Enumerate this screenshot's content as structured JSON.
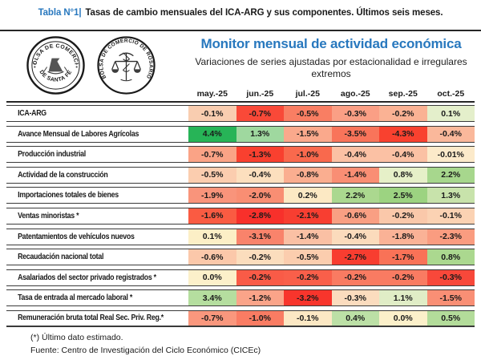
{
  "caption": {
    "label": "Tabla N°1|",
    "text": "Tasas de cambio mensuales del ICA-ARG y sus componentes. Últimos seis meses."
  },
  "branding": {
    "logo_santafe": {
      "arc_top": "BOLSA DE COMERCIO",
      "arc_bottom": "DE SANTA FE"
    },
    "logo_rosario": {
      "arc": "BOLSA DE COMERCIO DE ROSARIO"
    }
  },
  "header": {
    "title": "Monitor mensual de actividad económica",
    "subtitle": "Variaciones de series ajustadas por estacionalidad e irregulares extremos"
  },
  "table": {
    "columns": [
      "may.-25",
      "jun.-25",
      "jul.-25",
      "ago.-25",
      "sep.-25",
      "oct.-25"
    ],
    "rows": [
      {
        "label": "ICA-ARG",
        "values": [
          "-0.1%",
          "-0.7%",
          "-0.5%",
          "-0.3%",
          "-0.2%",
          "0.1%"
        ],
        "colors": [
          "#F9CDB0",
          "#F94938",
          "#F97E63",
          "#FA9F85",
          "#FAB294",
          "#E4EFCB"
        ]
      },
      {
        "label": "Avance Mensual de Labores Agrícolas",
        "values": [
          "4.4%",
          "1.3%",
          "-1.5%",
          "-3.5%",
          "-4.3%",
          "-0.4%"
        ],
        "colors": [
          "#27B457",
          "#9FD89F",
          "#FAA98C",
          "#F9745A",
          "#F9412F",
          "#FAB89B"
        ]
      },
      {
        "label": "Producción industrial",
        "values": [
          "-0.7%",
          "-1.3%",
          "-1.0%",
          "-0.4%",
          "-0.4%",
          "-0.01%"
        ],
        "colors": [
          "#FAA386",
          "#F9402F",
          "#F9694D",
          "#FBC1A4",
          "#FBC1A4",
          "#FCEACA"
        ]
      },
      {
        "label": "Actividad de la construcción",
        "values": [
          "-0.5%",
          "-0.4%",
          "-0.8%",
          "-1.4%",
          "0.8%",
          "2.2%"
        ],
        "colors": [
          "#FBCDAF",
          "#FCDFBE",
          "#FAAE90",
          "#F98E74",
          "#E6F0C8",
          "#A7D78D"
        ]
      },
      {
        "label": "Importaciones totales de bienes",
        "values": [
          "-1.9%",
          "-2.0%",
          "0.2%",
          "2.2%",
          "2.5%",
          "1.3%"
        ],
        "colors": [
          "#F9947B",
          "#F98E73",
          "#FCE9C4",
          "#ABD88F",
          "#9CD381",
          "#C8E3AB"
        ]
      },
      {
        "label": "Ventas minoristas *",
        "values": [
          "-1.6%",
          "-2.8%",
          "-2.1%",
          "-0.6%",
          "-0.2%",
          "-0.1%"
        ],
        "colors": [
          "#FA5B42",
          "#F8302B",
          "#F83E31",
          "#F99F83",
          "#FAC8AA",
          "#FBD2B3"
        ]
      },
      {
        "label": "Patentamientos de vehículos nuevos",
        "values": [
          "0.1%",
          "-3.1%",
          "-1.4%",
          "-0.4%",
          "-1.8%",
          "-2.3%"
        ],
        "colors": [
          "#FCEFC6",
          "#F9836B",
          "#FAC0A4",
          "#FBDBBC",
          "#FAB296",
          "#FA9C80"
        ]
      },
      {
        "label": "Recaudación nacional total",
        "values": [
          "-0.6%",
          "-0.2%",
          "-0.5%",
          "-2.7%",
          "-1.7%",
          "0.8%"
        ],
        "colors": [
          "#FBC8AA",
          "#FBDDBD",
          "#FBCDAE",
          "#F83D30",
          "#F97257",
          "#ABD88F"
        ]
      },
      {
        "label": "Asalariados del sector privado registrados *",
        "values": [
          "0.0%",
          "-0.2%",
          "-0.2%",
          "-0.2%",
          "-0.2%",
          "-0.3%"
        ],
        "colors": [
          "#FCF0CA",
          "#F95B47",
          "#F95F4A",
          "#F97B62",
          "#F97B62",
          "#F8483A"
        ]
      },
      {
        "label": "Tasa de entrada al mercado laboral *",
        "values": [
          "3.4%",
          "-1.2%",
          "-3.2%",
          "-0.3%",
          "1.1%",
          "-1.5%"
        ],
        "colors": [
          "#B5DE9F",
          "#FAA489",
          "#F8352C",
          "#FBDCBE",
          "#E0EDC6",
          "#F98F75"
        ]
      },
      {
        "label": "Remuneración bruta total Real Sec. Priv. Reg.*",
        "values": [
          "-0.7%",
          "-1.0%",
          "-0.1%",
          "0.4%",
          "0.0%",
          "0.5%"
        ],
        "colors": [
          "#F9977D",
          "#F97C63",
          "#FCE8C4",
          "#BCE0A6",
          "#FCF0CA",
          "#B3DC9A"
        ]
      }
    ]
  },
  "footnotes": [
    "(*) Último dato estimado.",
    "Fuente: Centro de Investigación del Ciclo Económico (CICEc)"
  ],
  "colors": {
    "accent_blue": "#2878BE",
    "rule_dark": "#262626",
    "cell_text": "#1A1A1A"
  },
  "chart_data": {
    "type": "heatmap",
    "title": "Monitor mensual de actividad económica",
    "subtitle": "Variaciones de series ajustadas por estacionalidad e irregulares extremos",
    "unit": "%",
    "x_categories": [
      "may.-25",
      "jun.-25",
      "jul.-25",
      "ago.-25",
      "sep.-25",
      "oct.-25"
    ],
    "series": [
      {
        "name": "ICA-ARG",
        "values": [
          -0.1,
          -0.7,
          -0.5,
          -0.3,
          -0.2,
          0.1
        ]
      },
      {
        "name": "Avance Mensual de Labores Agrícolas",
        "values": [
          4.4,
          1.3,
          -1.5,
          -3.5,
          -4.3,
          -0.4
        ]
      },
      {
        "name": "Producción industrial",
        "values": [
          -0.7,
          -1.3,
          -1.0,
          -0.4,
          -0.4,
          -0.01
        ]
      },
      {
        "name": "Actividad de la construcción",
        "values": [
          -0.5,
          -0.4,
          -0.8,
          -1.4,
          0.8,
          2.2
        ]
      },
      {
        "name": "Importaciones totales de bienes",
        "values": [
          -1.9,
          -2.0,
          0.2,
          2.2,
          2.5,
          1.3
        ]
      },
      {
        "name": "Ventas minoristas *",
        "values": [
          -1.6,
          -2.8,
          -2.1,
          -0.6,
          -0.2,
          -0.1
        ]
      },
      {
        "name": "Patentamientos de vehículos nuevos",
        "values": [
          0.1,
          -3.1,
          -1.4,
          -0.4,
          -1.8,
          -2.3
        ]
      },
      {
        "name": "Recaudación nacional total",
        "values": [
          -0.6,
          -0.2,
          -0.5,
          -2.7,
          -1.7,
          0.8
        ]
      },
      {
        "name": "Asalariados del sector privado registrados *",
        "values": [
          0.0,
          -0.2,
          -0.2,
          -0.2,
          -0.2,
          -0.3
        ]
      },
      {
        "name": "Tasa de entrada al mercado laboral *",
        "values": [
          3.4,
          -1.2,
          -3.2,
          -0.3,
          1.1,
          -1.5
        ]
      },
      {
        "name": "Remuneración bruta total Real Sec. Priv. Reg.*",
        "values": [
          -0.7,
          -1.0,
          -0.1,
          0.4,
          0.0,
          0.5
        ]
      }
    ],
    "color_scale": "red = negative / contraction, cream = near zero, green = positive / expansion",
    "legend_position": "none",
    "grid": false
  }
}
